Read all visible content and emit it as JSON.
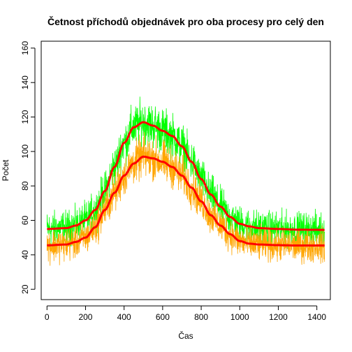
{
  "chart_data": {
    "type": "line",
    "title": "Četnost příchodů objednávek pro oba procesy pro celý den",
    "xlabel": "Čas",
    "ylabel": "Počet",
    "xlim": [
      -30,
      1470
    ],
    "ylim": [
      14,
      164
    ],
    "x_ticks": [
      "0",
      "200",
      "400",
      "600",
      "800",
      "1000",
      "1200",
      "1400"
    ],
    "y_ticks": [
      "20",
      "40",
      "60",
      "80",
      "100",
      "120",
      "140",
      "160"
    ],
    "y_tick_values": [
      20,
      40,
      60,
      80,
      100,
      120,
      140,
      160
    ],
    "x_tick_values": [
      0,
      200,
      400,
      600,
      800,
      1000,
      1200,
      1400
    ],
    "grid": false,
    "legend": "none",
    "colors": {
      "noisy_upper": "#00ff00",
      "noisy_lower": "#ffa500",
      "smooth": "#ff0000",
      "frame": "#000000"
    },
    "series": [
      {
        "role": "smooth-upper",
        "x": [
          0,
          100,
          150,
          200,
          250,
          300,
          350,
          400,
          450,
          500,
          550,
          600,
          650,
          700,
          750,
          800,
          850,
          900,
          950,
          1000,
          1050,
          1100,
          1200,
          1300,
          1440
        ],
        "values": [
          55,
          55.5,
          57,
          60,
          66,
          77,
          91,
          105,
          114,
          117,
          115,
          112,
          109,
          103,
          94,
          84,
          75,
          68,
          62,
          58,
          56.5,
          55.5,
          55,
          54.6,
          54.5
        ]
      },
      {
        "role": "smooth-lower",
        "x": [
          0,
          100,
          150,
          200,
          250,
          300,
          350,
          400,
          450,
          500,
          550,
          600,
          650,
          700,
          750,
          800,
          850,
          900,
          950,
          1000,
          1050,
          1100,
          1200,
          1300,
          1440
        ],
        "values": [
          45.5,
          46,
          47.5,
          50,
          56,
          66,
          76,
          86,
          93,
          97,
          96,
          94,
          91,
          86,
          79,
          71,
          63,
          57,
          52,
          48,
          46.5,
          46,
          45.6,
          45.4,
          45.4
        ]
      },
      {
        "role": "noisy-upper",
        "noise_amplitude": 6,
        "peak_max": 135,
        "based_on": "smooth-upper"
      },
      {
        "role": "noisy-lower",
        "noise_amplitude": 6,
        "trough_min": 30,
        "based_on": "smooth-lower"
      }
    ]
  }
}
